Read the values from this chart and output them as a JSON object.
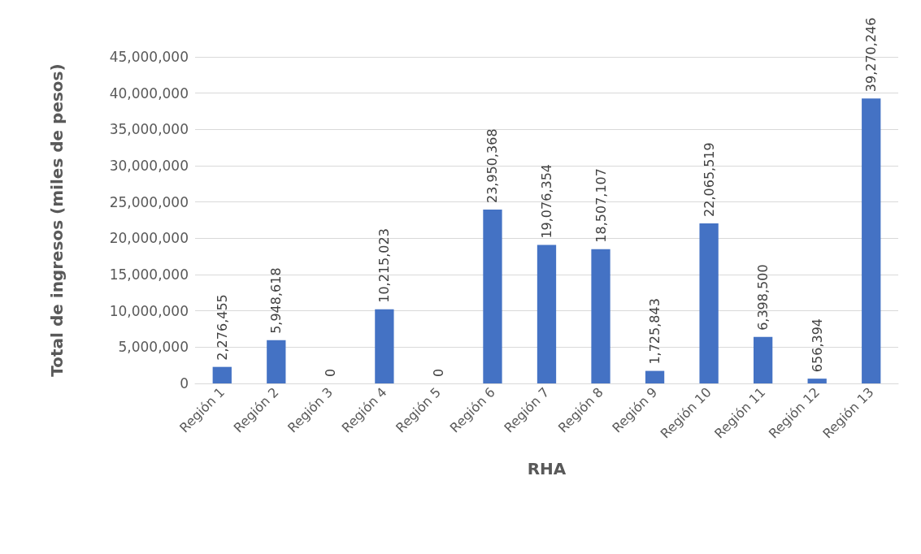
{
  "chart_data": {
    "type": "bar",
    "xlabel": "RHA",
    "ylabel": "Total de ingresos (miles de pesos)",
    "categories": [
      "Región 1",
      "Región 2",
      "Región 3",
      "Región 4",
      "Región 5",
      "Región 6",
      "Región 7",
      "Región 8",
      "Región 9",
      "Región 10",
      "Región 11",
      "Región 12",
      "Región 13"
    ],
    "values": [
      2276455,
      5948618,
      0,
      10215023,
      0,
      23950368,
      19076354,
      18507107,
      1725843,
      22065519,
      6398500,
      656394,
      39270246
    ],
    "value_labels": [
      "2,276,455",
      "5,948,618",
      "0",
      "10,215,023",
      "0",
      "23,950,368",
      "19,076,354",
      "18,507,107",
      "1,725,843",
      "22,065,519",
      "6,398,500",
      "656,394",
      "39,270,246"
    ],
    "color": "#4472c4",
    "ylim": [
      0,
      45000000
    ],
    "yticks": [
      0,
      {
        "value": 5000000,
        "label": "5,000,000"
      },
      {
        "value": 10000000,
        "label": "10,000,000"
      },
      {
        "value": 15000000,
        "label": "15,000,000"
      },
      {
        "value": 20000000,
        "label": "20,000,000"
      },
      {
        "value": 25000000,
        "label": "25,000,000"
      },
      {
        "value": 30000000,
        "label": "30,000,000"
      },
      {
        "value": 35000000,
        "label": "35,000,000"
      },
      {
        "value": 40000000,
        "label": "40,000,000"
      },
      {
        "value": 45000000,
        "label": "45,000,000"
      }
    ],
    "grid": "y"
  }
}
